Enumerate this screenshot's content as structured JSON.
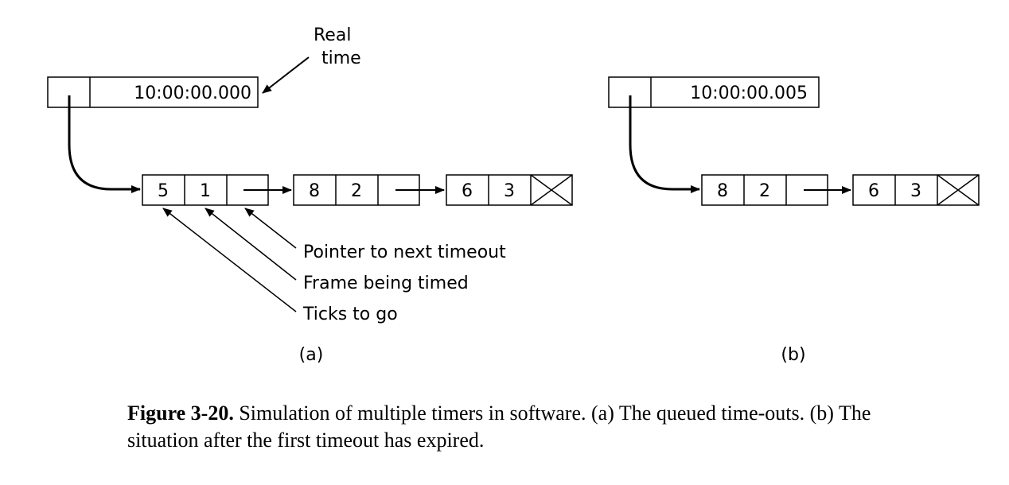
{
  "diagram": {
    "panel_a": {
      "realtime_label_line1": "Real",
      "realtime_label_line2": "time",
      "clock": "10:00:00.000",
      "nodes": [
        {
          "ticks": "5",
          "frame": "1"
        },
        {
          "ticks": "8",
          "frame": "2"
        },
        {
          "ticks": "6",
          "frame": "3"
        }
      ],
      "annotations": {
        "pointer": "Pointer to next timeout",
        "frame": "Frame being timed",
        "ticks": "Ticks to go"
      },
      "label": "(a)"
    },
    "panel_b": {
      "clock": "10:00:00.005",
      "nodes": [
        {
          "ticks": "8",
          "frame": "2"
        },
        {
          "ticks": "6",
          "frame": "3"
        }
      ],
      "label": "(b)"
    }
  },
  "caption": {
    "label": "Figure 3-20.",
    "text": "Simulation of multiple timers in software. (a) The queued time-outs. (b) The situation after the first timeout has expired."
  }
}
